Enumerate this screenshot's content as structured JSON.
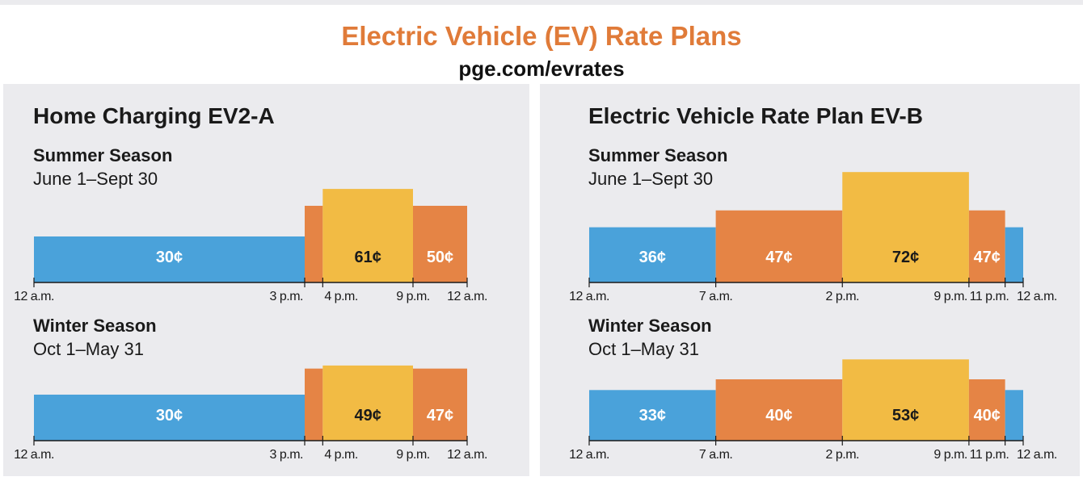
{
  "header": {
    "title": "Electric Vehicle (EV) Rate Plans",
    "subtitle": "pge.com/evrates"
  },
  "colors": {
    "offpeak": "#4aa2da",
    "partpeak": "#e58445",
    "peak": "#f2bb44",
    "title": "#e07b39"
  },
  "chart_data": [
    {
      "type": "bar",
      "plan": "Home Charging EV2-A",
      "season": "Summer Season",
      "dates": "June 1–Sept 30",
      "x_unit": "hour of day",
      "xlim": [
        0,
        24
      ],
      "ticks": [
        {
          "h": 0,
          "label": "12 a.m."
        },
        {
          "h": 15,
          "label": "3 p.m."
        },
        {
          "h": 16,
          "label": "4 p.m."
        },
        {
          "h": 21,
          "label": "9 p.m."
        },
        {
          "h": 24,
          "label": "12 a.m."
        }
      ],
      "segments": [
        {
          "start": 0,
          "end": 15,
          "cents": 30,
          "tier": "offpeak",
          "label": "30¢"
        },
        {
          "start": 15,
          "end": 16,
          "cents": 50,
          "tier": "partpeak",
          "label": ""
        },
        {
          "start": 16,
          "end": 21,
          "cents": 61,
          "tier": "peak",
          "label": "61¢"
        },
        {
          "start": 21,
          "end": 24,
          "cents": 50,
          "tier": "partpeak",
          "label": "50¢"
        }
      ]
    },
    {
      "type": "bar",
      "plan": "Home Charging EV2-A",
      "season": "Winter Season",
      "dates": "Oct 1–May 31",
      "x_unit": "hour of day",
      "xlim": [
        0,
        24
      ],
      "ticks": [
        {
          "h": 0,
          "label": "12 a.m."
        },
        {
          "h": 15,
          "label": "3 p.m."
        },
        {
          "h": 16,
          "label": "4 p.m."
        },
        {
          "h": 21,
          "label": "9 p.m."
        },
        {
          "h": 24,
          "label": "12 a.m."
        }
      ],
      "segments": [
        {
          "start": 0,
          "end": 15,
          "cents": 30,
          "tier": "offpeak",
          "label": "30¢"
        },
        {
          "start": 15,
          "end": 16,
          "cents": 47,
          "tier": "partpeak",
          "label": ""
        },
        {
          "start": 16,
          "end": 21,
          "cents": 49,
          "tier": "peak",
          "label": "49¢"
        },
        {
          "start": 21,
          "end": 24,
          "cents": 47,
          "tier": "partpeak",
          "label": "47¢"
        }
      ]
    },
    {
      "type": "bar",
      "plan": "Electric Vehicle Rate Plan EV-B",
      "season": "Summer Season",
      "dates": "June 1–Sept 30",
      "x_unit": "hour of day",
      "xlim": [
        0,
        24
      ],
      "ticks": [
        {
          "h": 0,
          "label": "12 a.m."
        },
        {
          "h": 7,
          "label": "7 a.m."
        },
        {
          "h": 14,
          "label": "2 p.m."
        },
        {
          "h": 21,
          "label": "9 p.m."
        },
        {
          "h": 23,
          "label": "11 p.m."
        },
        {
          "h": 24,
          "label": "12 a.m."
        }
      ],
      "segments": [
        {
          "start": 0,
          "end": 7,
          "cents": 36,
          "tier": "offpeak",
          "label": "36¢"
        },
        {
          "start": 7,
          "end": 14,
          "cents": 47,
          "tier": "partpeak",
          "label": "47¢"
        },
        {
          "start": 14,
          "end": 21,
          "cents": 72,
          "tier": "peak",
          "label": "72¢"
        },
        {
          "start": 21,
          "end": 23,
          "cents": 47,
          "tier": "partpeak",
          "label": "47¢"
        },
        {
          "start": 23,
          "end": 24,
          "cents": 36,
          "tier": "offpeak",
          "label": ""
        }
      ]
    },
    {
      "type": "bar",
      "plan": "Electric Vehicle Rate Plan EV-B",
      "season": "Winter Season",
      "dates": "Oct 1–May 31",
      "x_unit": "hour of day",
      "xlim": [
        0,
        24
      ],
      "ticks": [
        {
          "h": 0,
          "label": "12 a.m."
        },
        {
          "h": 7,
          "label": "7 a.m."
        },
        {
          "h": 14,
          "label": "2 p.m."
        },
        {
          "h": 21,
          "label": "9 p.m."
        },
        {
          "h": 23,
          "label": "11 p.m."
        },
        {
          "h": 24,
          "label": "12 a.m."
        }
      ],
      "segments": [
        {
          "start": 0,
          "end": 7,
          "cents": 33,
          "tier": "offpeak",
          "label": "33¢"
        },
        {
          "start": 7,
          "end": 14,
          "cents": 40,
          "tier": "partpeak",
          "label": "40¢"
        },
        {
          "start": 14,
          "end": 21,
          "cents": 53,
          "tier": "peak",
          "label": "53¢"
        },
        {
          "start": 21,
          "end": 23,
          "cents": 40,
          "tier": "partpeak",
          "label": "40¢"
        },
        {
          "start": 23,
          "end": 24,
          "cents": 33,
          "tier": "offpeak",
          "label": ""
        }
      ]
    }
  ]
}
